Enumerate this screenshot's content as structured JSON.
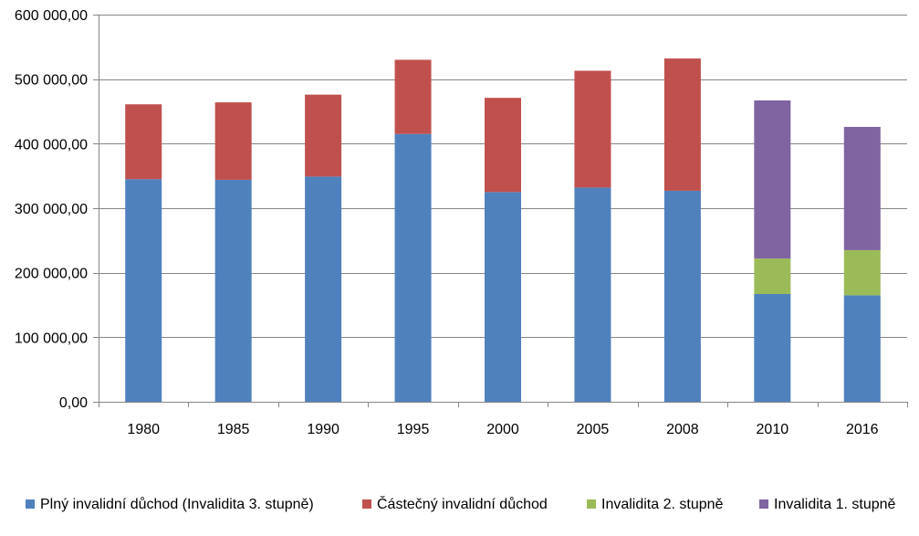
{
  "chart_data": {
    "type": "bar",
    "stacked": true,
    "title": "",
    "xlabel": "",
    "ylabel": "",
    "ylim": [
      0,
      600000
    ],
    "y_ticks": [
      0,
      100000,
      200000,
      300000,
      400000,
      500000,
      600000
    ],
    "y_tick_labels": [
      "0,00",
      "100 000,00",
      "200 000,00",
      "300 000,00",
      "400 000,00",
      "500 000,00",
      "600 000,00"
    ],
    "grid": true,
    "legend_position": "bottom",
    "categories": [
      "1980",
      "1985",
      "1990",
      "1995",
      "2000",
      "2005",
      "2008",
      "2010",
      "2016"
    ],
    "series": [
      {
        "name": "Plný invalidní důchod (Invalidita 3. stupně)",
        "color": "#4f81bd",
        "values": [
          345000,
          344000,
          349000,
          415000,
          325000,
          332000,
          327000,
          167000,
          165000
        ]
      },
      {
        "name": "Částečný invalidní důchod",
        "color": "#c0504d",
        "values": [
          116000,
          120000,
          127000,
          115000,
          146000,
          181000,
          205000,
          0,
          0
        ]
      },
      {
        "name": "Invalidita 2. stupně",
        "color": "#9bbb59",
        "values": [
          0,
          0,
          0,
          0,
          0,
          0,
          0,
          55000,
          70000
        ]
      },
      {
        "name": "Invalidita 1. stupně",
        "color": "#8064a2",
        "values": [
          0,
          0,
          0,
          0,
          0,
          0,
          0,
          245000,
          191000
        ]
      }
    ],
    "axis_color": "#868686",
    "grid_color": "#868686"
  }
}
